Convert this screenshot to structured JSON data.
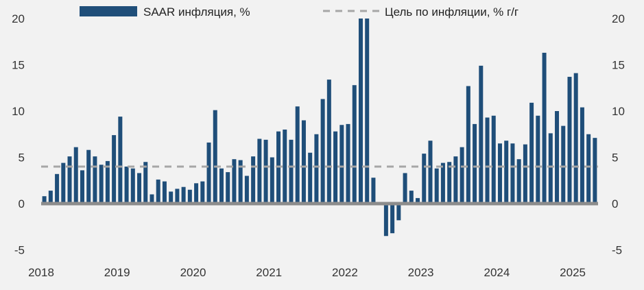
{
  "colors": {
    "bar": "#1f4e79",
    "target": "#a6a6a6",
    "zero": "#8c8c8c",
    "background": "#f2f2f2"
  },
  "legend": {
    "items": [
      {
        "label": "SAAR инфляция, %",
        "marker": "bar"
      },
      {
        "label": "Цель по инфляции, % г/г",
        "marker": "dashed-line"
      }
    ]
  },
  "chart_data": {
    "type": "bar",
    "title": "",
    "xlabel": "",
    "ylabel": "",
    "ylim": [
      -5,
      20
    ],
    "yticks": [
      -5,
      0,
      5,
      10,
      15,
      20
    ],
    "y_axis": "both-sides",
    "grid": false,
    "legend_position": "top",
    "x_tick_labels": [
      "2018",
      "2019",
      "2020",
      "2021",
      "2022",
      "2023",
      "2024",
      "2025"
    ],
    "series": [
      {
        "name": "SAAR инфляция, %",
        "type": "bar",
        "start": "2018-01",
        "frequency": "monthly",
        "values": [
          0.8,
          1.4,
          3.2,
          4.4,
          5.1,
          6.1,
          3.6,
          5.8,
          5.1,
          4.2,
          4.6,
          7.4,
          9.4,
          4.0,
          3.8,
          3.3,
          4.5,
          1.0,
          2.6,
          2.4,
          1.3,
          1.6,
          1.8,
          1.5,
          2.2,
          2.4,
          6.6,
          10.1,
          3.8,
          3.4,
          4.8,
          4.7,
          3.0,
          5.1,
          7.0,
          6.9,
          5.0,
          7.8,
          8.0,
          6.9,
          10.5,
          9.0,
          5.5,
          7.5,
          11.3,
          13.4,
          7.8,
          8.5,
          8.6,
          12.8,
          22.0,
          22.0,
          2.8,
          0.0,
          -3.5,
          -3.2,
          -1.8,
          3.3,
          1.4,
          0.6,
          5.4,
          6.8,
          3.8,
          4.4,
          4.5,
          5.1,
          6.1,
          12.7,
          8.6,
          14.9,
          9.3,
          9.5,
          6.5,
          6.8,
          6.5,
          4.8,
          6.4,
          10.9,
          9.5,
          16.3,
          7.6,
          10.0,
          8.4,
          13.7,
          14.1,
          10.4,
          7.5,
          7.1
        ]
      },
      {
        "name": "Цель по инфляции, % г/г",
        "type": "line",
        "value": 4
      }
    ]
  }
}
